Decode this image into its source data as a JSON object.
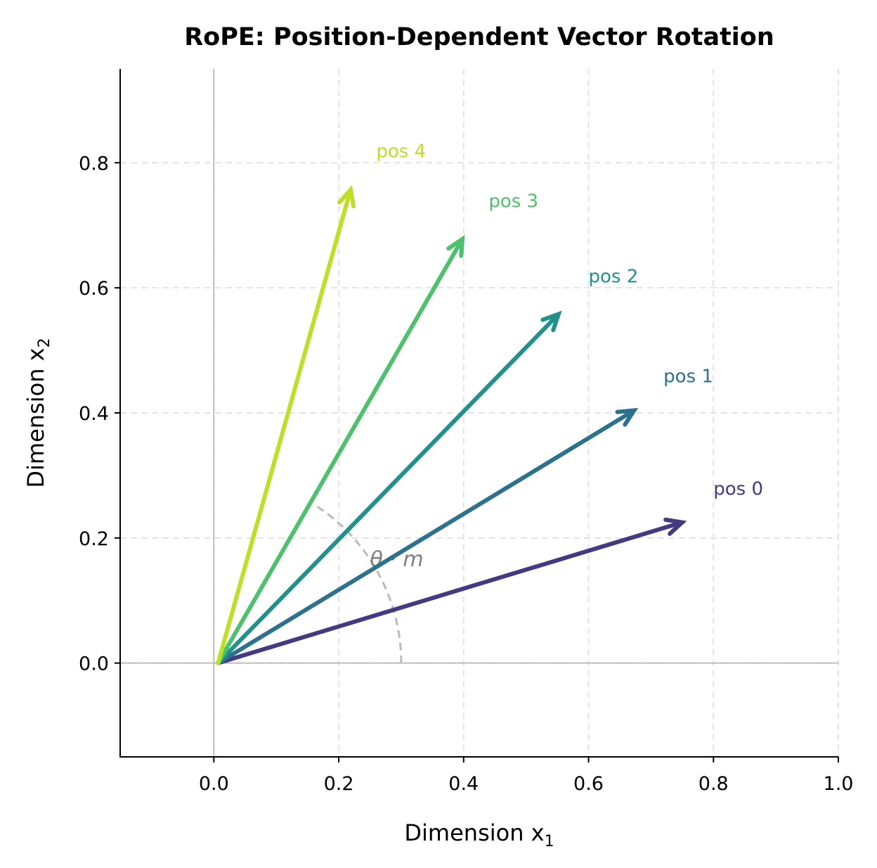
{
  "chart_data": {
    "type": "line",
    "title": "RoPE: Position-Dependent Vector Rotation",
    "xlabel": "Dimension x",
    "xlabel_subscript": "1",
    "ylabel": "Dimension x",
    "ylabel_subscript": "2",
    "xlim": [
      -0.15,
      1.0
    ],
    "ylim": [
      -0.15,
      0.95
    ],
    "xticks": [
      "0.0",
      "0.2",
      "0.4",
      "0.6",
      "0.8",
      "1.0"
    ],
    "yticks": [
      "0.0",
      "0.2",
      "0.4",
      "0.6",
      "0.8"
    ],
    "grid": true,
    "spines": "left-bottom",
    "series": [
      {
        "name": "pos 0",
        "start": [
          0,
          0
        ],
        "end": [
          0.75,
          0.225
        ],
        "color": "#443983",
        "label_pos": [
          0.8,
          0.28
        ]
      },
      {
        "name": "pos 1",
        "start": [
          0,
          0
        ],
        "end": [
          0.673,
          0.404
        ],
        "color": "#2c728e",
        "label_pos": [
          0.72,
          0.46
        ]
      },
      {
        "name": "pos 2",
        "start": [
          0,
          0
        ],
        "end": [
          0.552,
          0.558
        ],
        "color": "#21918c",
        "label_pos": [
          0.6,
          0.62
        ]
      },
      {
        "name": "pos 3",
        "start": [
          0,
          0
        ],
        "end": [
          0.398,
          0.678
        ],
        "color": "#4cc26c",
        "label_pos": [
          0.44,
          0.74
        ]
      },
      {
        "name": "pos 4",
        "start": [
          0,
          0
        ],
        "end": [
          0.219,
          0.757
        ],
        "color": "#bddf26",
        "label_pos": [
          0.26,
          0.82
        ]
      }
    ],
    "annotations": [
      {
        "text": "θ · m",
        "pos": [
          0.25,
          0.155
        ],
        "color": "#808080"
      }
    ],
    "arc": {
      "radius": 0.3,
      "angle_start_deg": 0,
      "angle_end_deg": 57,
      "color": "#bbbbbb",
      "style": "dashed"
    }
  }
}
